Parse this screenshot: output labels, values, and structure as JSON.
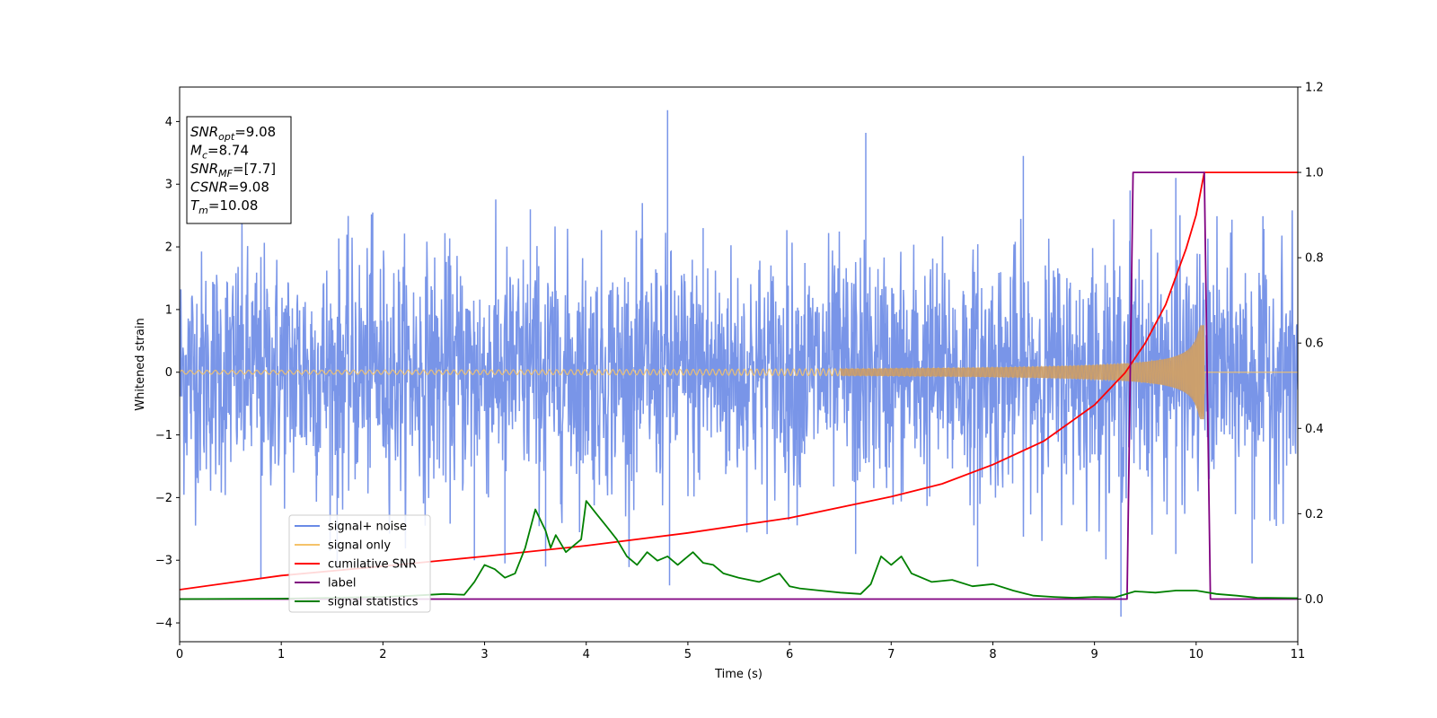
{
  "chart_data": {
    "type": "line",
    "xlabel": "Time (s)",
    "ylabel": "Whitened strain",
    "xlim": [
      0,
      11
    ],
    "ylim_left": [
      -4.3,
      4.55
    ],
    "ylim_right": [
      -0.1,
      1.2
    ],
    "xticks": [
      "0",
      "1",
      "2",
      "3",
      "4",
      "5",
      "6",
      "7",
      "8",
      "9",
      "10",
      "11"
    ],
    "yticks_left": [
      "−4",
      "−3",
      "−2",
      "−1",
      "0",
      "1",
      "2",
      "3",
      "4"
    ],
    "yticks_right": [
      "0.0",
      "0.2",
      "0.4",
      "0.6",
      "0.8",
      "1.0",
      "1.2"
    ],
    "grid": false,
    "legend_position": "lower-left",
    "annotation": [
      {
        "base": "SNR",
        "sub": "opt",
        "rest": "=9.08"
      },
      {
        "base": "M",
        "sub": "c",
        "rest": "=8.74"
      },
      {
        "base": "SNR",
        "sub": "MF",
        "rest": "=[7.7]"
      },
      {
        "base": "CSNR",
        "sub": "",
        "rest": "=9.08"
      },
      {
        "base": "T",
        "sub": "m",
        "rest": "=10.08"
      }
    ],
    "series": [
      {
        "name": "signal+ noise",
        "axis": "left",
        "color": "#6a8ae6",
        "kind": "whitened noise, envelope approx ±2.3 with spikes up to 4.2",
        "spikes": [
          [
            4.8,
            4.18
          ],
          [
            6.75,
            3.82
          ],
          [
            8.3,
            3.45
          ],
          [
            1.9,
            2.55
          ],
          [
            3.45,
            2.6
          ],
          [
            5.15,
            2.3
          ],
          [
            9.35,
            2.9
          ],
          [
            9.8,
            3.1
          ],
          [
            9.26,
            -3.9
          ],
          [
            4.82,
            -3.4
          ],
          [
            2.9,
            -3.0
          ],
          [
            3.2,
            -3.05
          ],
          [
            0.8,
            -3.3
          ],
          [
            1.55,
            -3.1
          ],
          [
            3.6,
            -3.1
          ],
          [
            6.65,
            -2.9
          ],
          [
            7.85,
            -3.1
          ],
          [
            9.8,
            -2.9
          ],
          [
            10.55,
            -3.05
          ]
        ]
      },
      {
        "name": "signal only",
        "axis": "left",
        "color": "#f5c36a",
        "kind": "chirp",
        "merger_time": 10.08,
        "amplitude_at_merger": 0.75
      },
      {
        "name": "cumilative SNR",
        "axis": "right",
        "color": "#ff0000",
        "x": [
          0,
          1,
          2,
          3,
          4,
          5,
          6,
          7,
          7.5,
          8,
          8.5,
          9,
          9.3,
          9.5,
          9.7,
          9.9,
          10.0,
          10.08,
          11
        ],
        "y": [
          0.022,
          0.055,
          0.077,
          0.1,
          0.125,
          0.155,
          0.19,
          0.24,
          0.27,
          0.315,
          0.37,
          0.455,
          0.53,
          0.6,
          0.69,
          0.82,
          0.9,
          1.0,
          1.0
        ]
      },
      {
        "name": "label",
        "axis": "right",
        "color": "#800080",
        "x": [
          0,
          9.32,
          9.38,
          10.08,
          10.14,
          11
        ],
        "y": [
          0,
          0,
          1,
          1,
          0,
          0
        ]
      },
      {
        "name": "signal statistics",
        "axis": "right",
        "color": "#008000",
        "x": [
          0,
          1,
          2,
          2.3,
          2.6,
          2.8,
          2.9,
          3.0,
          3.1,
          3.2,
          3.3,
          3.4,
          3.5,
          3.6,
          3.65,
          3.7,
          3.8,
          3.95,
          4.0,
          4.1,
          4.2,
          4.3,
          4.4,
          4.5,
          4.6,
          4.7,
          4.8,
          4.9,
          5.0,
          5.05,
          5.15,
          5.25,
          5.35,
          5.5,
          5.7,
          5.9,
          6.0,
          6.1,
          6.3,
          6.5,
          6.7,
          6.8,
          6.9,
          7.0,
          7.1,
          7.2,
          7.4,
          7.6,
          7.8,
          8.0,
          8.2,
          8.4,
          8.6,
          8.8,
          9.0,
          9.2,
          9.4,
          9.6,
          9.8,
          10.0,
          10.2,
          10.4,
          10.6,
          11
        ],
        "y": [
          0.0,
          0.001,
          0.005,
          0.008,
          0.012,
          0.01,
          0.04,
          0.08,
          0.07,
          0.05,
          0.06,
          0.12,
          0.21,
          0.16,
          0.12,
          0.15,
          0.11,
          0.14,
          0.23,
          0.2,
          0.17,
          0.14,
          0.1,
          0.08,
          0.11,
          0.09,
          0.1,
          0.08,
          0.1,
          0.11,
          0.085,
          0.08,
          0.06,
          0.05,
          0.04,
          0.06,
          0.03,
          0.025,
          0.02,
          0.015,
          0.012,
          0.035,
          0.1,
          0.08,
          0.1,
          0.06,
          0.04,
          0.045,
          0.03,
          0.035,
          0.02,
          0.008,
          0.005,
          0.003,
          0.005,
          0.004,
          0.018,
          0.015,
          0.02,
          0.02,
          0.012,
          0.008,
          0.003,
          0.002
        ]
      }
    ]
  }
}
